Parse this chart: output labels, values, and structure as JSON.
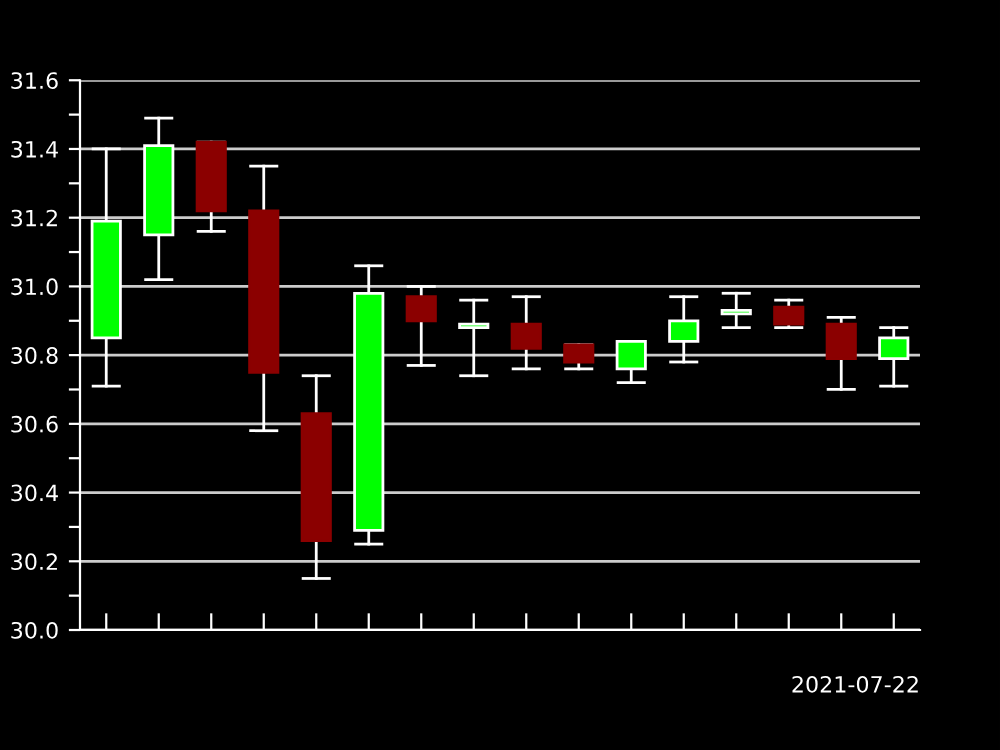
{
  "chart_data": {
    "type": "candlestick",
    "categories": [
      null,
      null,
      null,
      null,
      null,
      null,
      null,
      null,
      null,
      null,
      null,
      null,
      null,
      null,
      null,
      null
    ],
    "ohlc": [
      [
        30.85,
        31.4,
        30.71,
        31.19
      ],
      [
        31.15,
        31.49,
        31.02,
        31.41
      ],
      [
        31.42,
        31.42,
        31.16,
        31.22
      ],
      [
        31.22,
        31.35,
        30.58,
        30.75
      ],
      [
        30.63,
        30.74,
        30.15,
        30.26
      ],
      [
        30.29,
        31.06,
        30.25,
        30.98
      ],
      [
        30.97,
        31.0,
        30.77,
        30.9
      ],
      [
        30.88,
        30.96,
        30.74,
        30.89
      ],
      [
        30.89,
        30.97,
        30.76,
        30.82
      ],
      [
        30.83,
        30.83,
        30.76,
        30.78
      ],
      [
        30.76,
        30.84,
        30.72,
        30.84
      ],
      [
        30.84,
        30.97,
        30.78,
        30.9
      ],
      [
        30.92,
        30.98,
        30.88,
        30.93
      ],
      [
        30.94,
        30.96,
        30.88,
        30.89
      ],
      [
        30.89,
        30.91,
        30.7,
        30.79
      ],
      [
        30.79,
        30.88,
        30.71,
        30.85
      ]
    ],
    "colors": [
      "#00ff00",
      "#00ff00",
      "#8b0000",
      "#8b0000",
      "#8b0000",
      "#00ff00",
      "#8b0000",
      "#00ff00",
      "#8b0000",
      "#8b0000",
      "#00ff00",
      "#00ff00",
      "#00ff00",
      "#8b0000",
      "#8b0000",
      "#00ff00"
    ],
    "ylim": [
      30.0,
      31.6
    ],
    "yticks": [
      {
        "value": 30.0,
        "label": "30.0"
      },
      {
        "value": 30.1,
        "label": null
      },
      30.2,
      {
        "value": 30.3,
        "label": null
      },
      30.4,
      {
        "value": 30.5,
        "label": null
      },
      30.6,
      {
        "value": 30.7,
        "label": null
      },
      30.8,
      {
        "value": 30.9,
        "label": null
      },
      {
        "value": 31.0,
        "label": "31.0"
      },
      {
        "value": 31.1,
        "label": null
      },
      31.2,
      {
        "value": 31.3,
        "label": null
      },
      31.4,
      {
        "value": 31.5,
        "label": null
      },
      31.6
    ],
    "grid": "y",
    "annotations": [
      "2021-07-22"
    ]
  }
}
